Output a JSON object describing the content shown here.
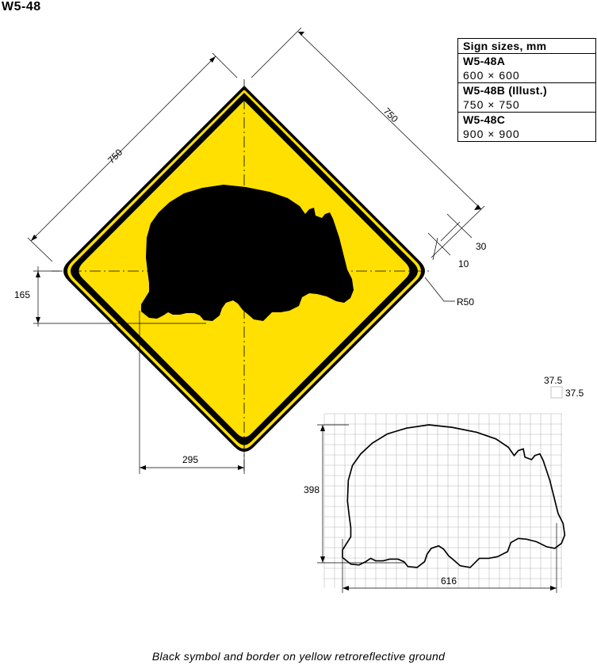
{
  "sheet_id": "W5-48",
  "sizes_table": {
    "title": "Sign sizes, mm",
    "rows": [
      {
        "code": "W5-48A",
        "size": "600 × 600"
      },
      {
        "code": "W5-48B (Illust.)",
        "size": "750 × 750"
      },
      {
        "code": "W5-48C",
        "size": "900 × 900"
      }
    ]
  },
  "dimensions": {
    "left_side": "750",
    "right_side": "750",
    "border_outer": "30",
    "border_inner": "10",
    "corner_radius": "R50",
    "symbol_height_offset": "165",
    "symbol_offset": "295",
    "grid_cell_a": "37.5",
    "grid_cell_b": "37.5",
    "symbol_height": "398",
    "symbol_width": "616"
  },
  "caption": "Black symbol and border on yellow retroreflective ground",
  "colors": {
    "ground": "#ffe000",
    "symbol": "#000000"
  }
}
